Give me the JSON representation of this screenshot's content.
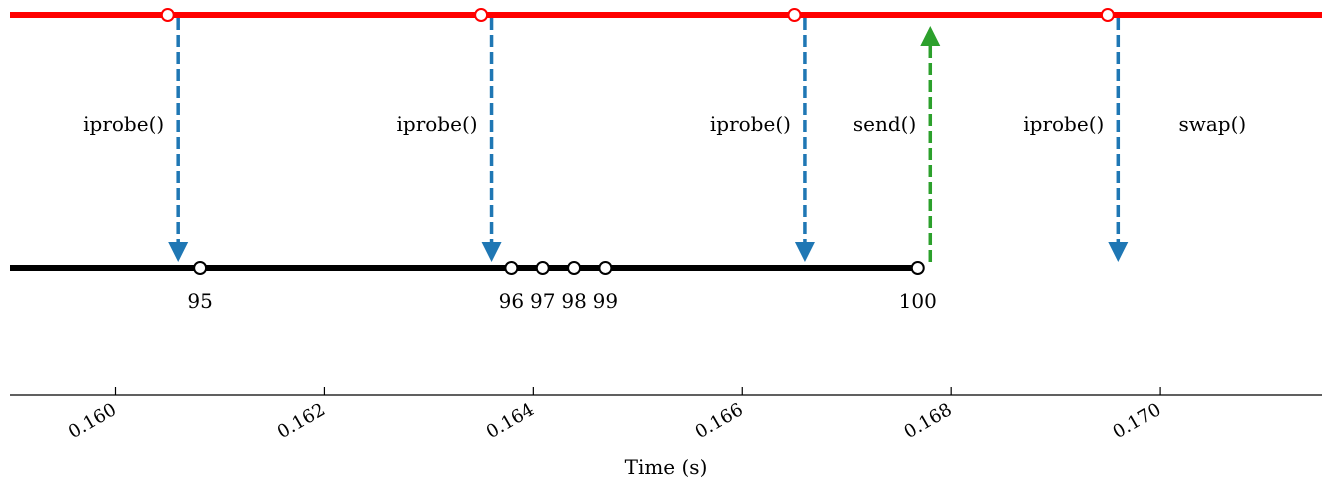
{
  "chart_data": {
    "type": "timeline",
    "xlabel": "Time (s)",
    "xlim": [
      0.15899,
      0.17155
    ],
    "x_ticks": [
      0.16,
      0.162,
      0.164,
      0.166,
      0.168,
      0.17
    ],
    "x_tick_labels": [
      "0.160",
      "0.162",
      "0.164",
      "0.166",
      "0.168",
      "0.170"
    ],
    "colors": {
      "upper_line": "#ff0000",
      "lower_line": "#000000",
      "iprobe_arrow": "#1f77b4",
      "send_arrow": "#2ca02c",
      "axis": "#000000"
    },
    "upper_line_markers": [
      0.1605,
      0.1635,
      0.1665,
      0.1695
    ],
    "lower_line_end": 0.16768,
    "lower_line_events": [
      {
        "time": 0.16081,
        "label": "95"
      },
      {
        "time": 0.16379,
        "label": "96"
      },
      {
        "time": 0.16409,
        "label": "97"
      },
      {
        "time": 0.16439,
        "label": "98"
      },
      {
        "time": 0.16469,
        "label": "99"
      },
      {
        "time": 0.16768,
        "label": "100"
      }
    ],
    "arrows": [
      {
        "time": 0.1606,
        "direction": "down",
        "label": "iprobe()",
        "kind": "iprobe"
      },
      {
        "time": 0.1636,
        "direction": "down",
        "label": "iprobe()",
        "kind": "iprobe"
      },
      {
        "time": 0.1666,
        "direction": "down",
        "label": "iprobe()",
        "kind": "iprobe"
      },
      {
        "time": 0.1678,
        "direction": "up",
        "label": "send()",
        "kind": "send"
      },
      {
        "time": 0.1696,
        "direction": "down",
        "label": "iprobe()",
        "kind": "iprobe"
      }
    ],
    "annotations": [
      {
        "time": 0.1705,
        "label": "swap()"
      }
    ]
  }
}
